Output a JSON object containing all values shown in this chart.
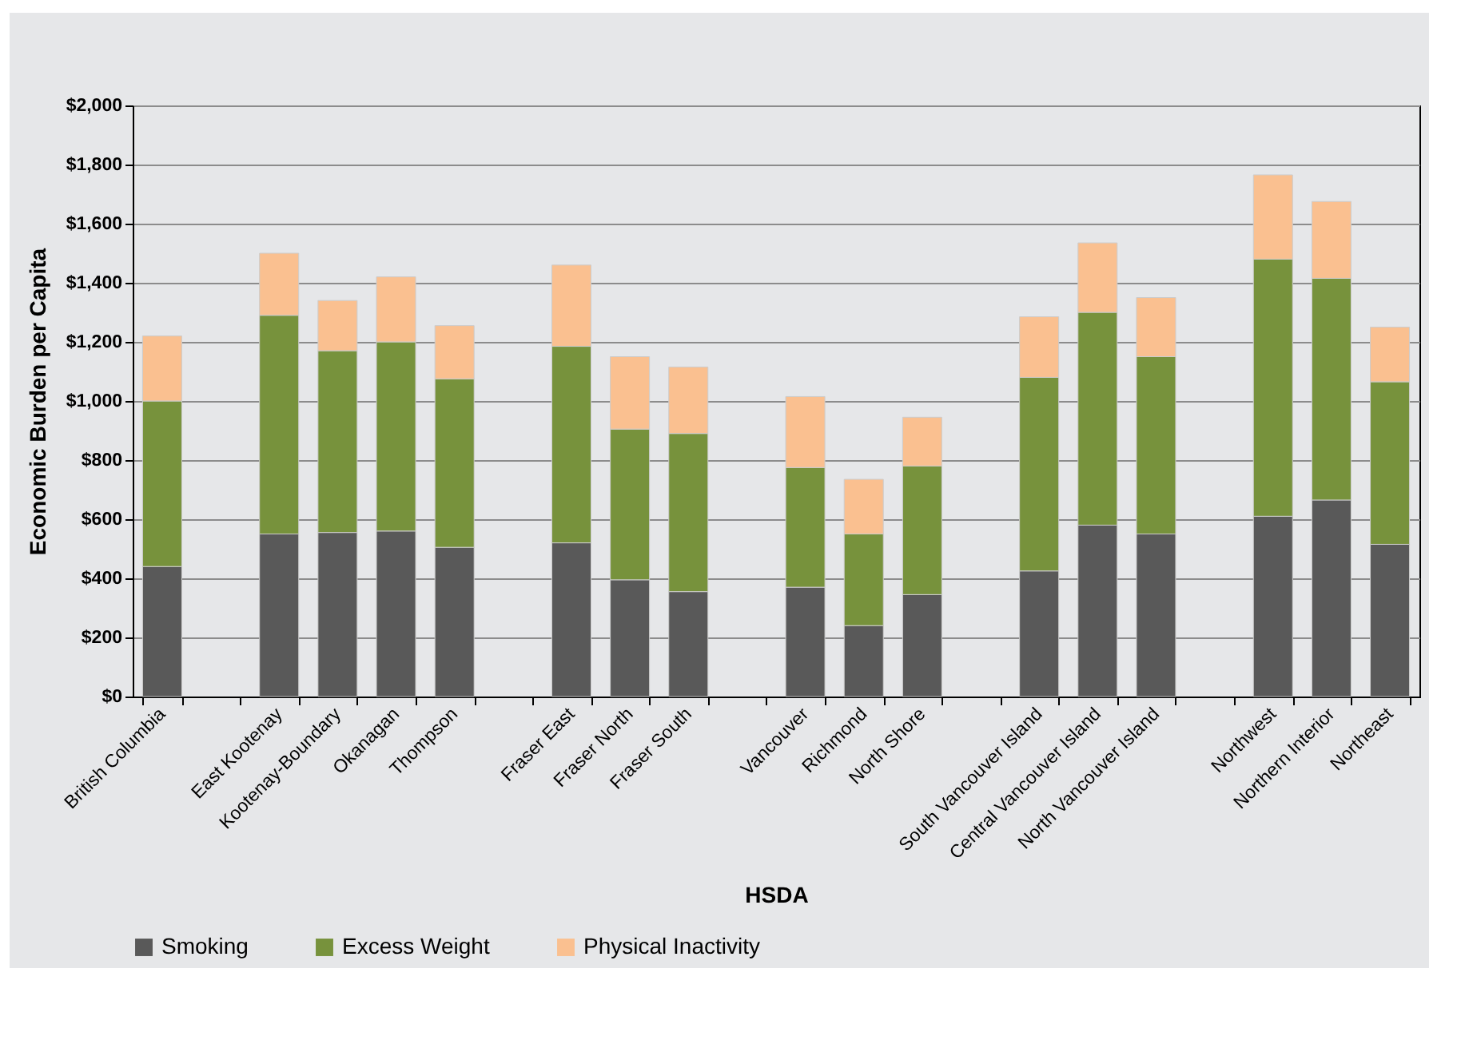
{
  "chart_data": {
    "type": "bar",
    "stacked": true,
    "xlabel": "HSDA",
    "ylabel": "Economic Burden per Capita",
    "categories": [
      "British Columbia",
      null,
      "East Kootenay",
      "Kootenay-Boundary",
      "Okanagan",
      "Thompson",
      null,
      "Fraser East",
      "Fraser North",
      "Fraser South",
      null,
      "Vancouver",
      "Richmond",
      "North Shore",
      null,
      "South Vancouver Island",
      "Central Vancouver Island",
      "North Vancouver Island",
      null,
      "Northwest",
      "Northern Interior",
      "Northeast"
    ],
    "series": [
      {
        "name": "Smoking",
        "color": "#595959",
        "values": [
          440,
          null,
          550,
          555,
          560,
          505,
          null,
          520,
          395,
          355,
          null,
          370,
          240,
          345,
          null,
          425,
          580,
          550,
          null,
          610,
          665,
          515
        ]
      },
      {
        "name": "Excess Weight",
        "color": "#77923c",
        "values": [
          560,
          null,
          740,
          615,
          640,
          570,
          null,
          665,
          510,
          535,
          null,
          405,
          310,
          435,
          null,
          655,
          720,
          600,
          null,
          870,
          750,
          550
        ]
      },
      {
        "name": "Physical Inactivity",
        "color": "#fac090",
        "values": [
          220,
          null,
          210,
          170,
          220,
          180,
          null,
          275,
          245,
          225,
          null,
          240,
          185,
          165,
          null,
          205,
          235,
          200,
          null,
          285,
          260,
          185
        ]
      }
    ],
    "ylim": [
      0,
      2000
    ],
    "yticks": [
      {
        "value": 0,
        "label": "$0"
      },
      {
        "value": 200,
        "label": "$200"
      },
      {
        "value": 400,
        "label": "$400"
      },
      {
        "value": 600,
        "label": "$600"
      },
      {
        "value": 800,
        "label": "$800"
      },
      {
        "value": 1000,
        "label": "$1,000"
      },
      {
        "value": 1200,
        "label": "$1,200"
      },
      {
        "value": 1400,
        "label": "$1,400"
      },
      {
        "value": 1600,
        "label": "$1,600"
      },
      {
        "value": 1800,
        "label": "$1,800"
      },
      {
        "value": 2000,
        "label": "$2,000"
      }
    ],
    "grid": "y",
    "legend": "bottom"
  }
}
